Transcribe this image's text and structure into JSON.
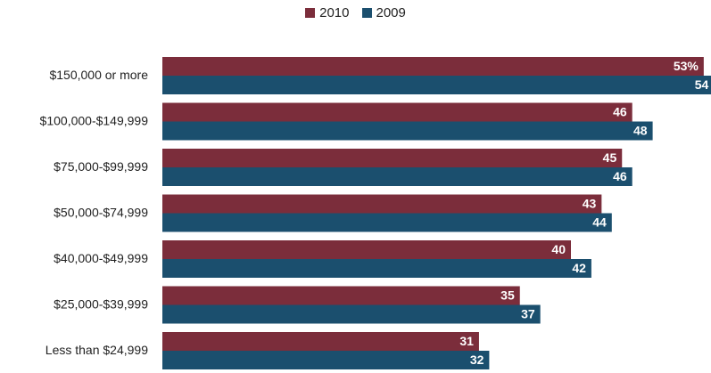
{
  "chart_data": {
    "type": "bar",
    "orientation": "horizontal",
    "categories": [
      "$150,000 or more",
      "$100,000-$149,999",
      "$75,000-$99,999",
      "$50,000-$74,999",
      "$40,000-$49,999",
      "$25,000-$39,999",
      "Less than $24,999"
    ],
    "series": [
      {
        "name": "2010",
        "color": "#7b2d3b",
        "values": [
          53,
          46,
          45,
          43,
          40,
          35,
          31
        ],
        "labels": [
          "53%",
          "46",
          "45",
          "43",
          "40",
          "35",
          "31"
        ]
      },
      {
        "name": "2009",
        "color": "#1b4f6e",
        "values": [
          54,
          48,
          46,
          44,
          42,
          37,
          32
        ],
        "labels": [
          "54",
          "48",
          "46",
          "44",
          "42",
          "37",
          "32"
        ]
      }
    ],
    "legend_position": "top-center",
    "grid": false
  }
}
